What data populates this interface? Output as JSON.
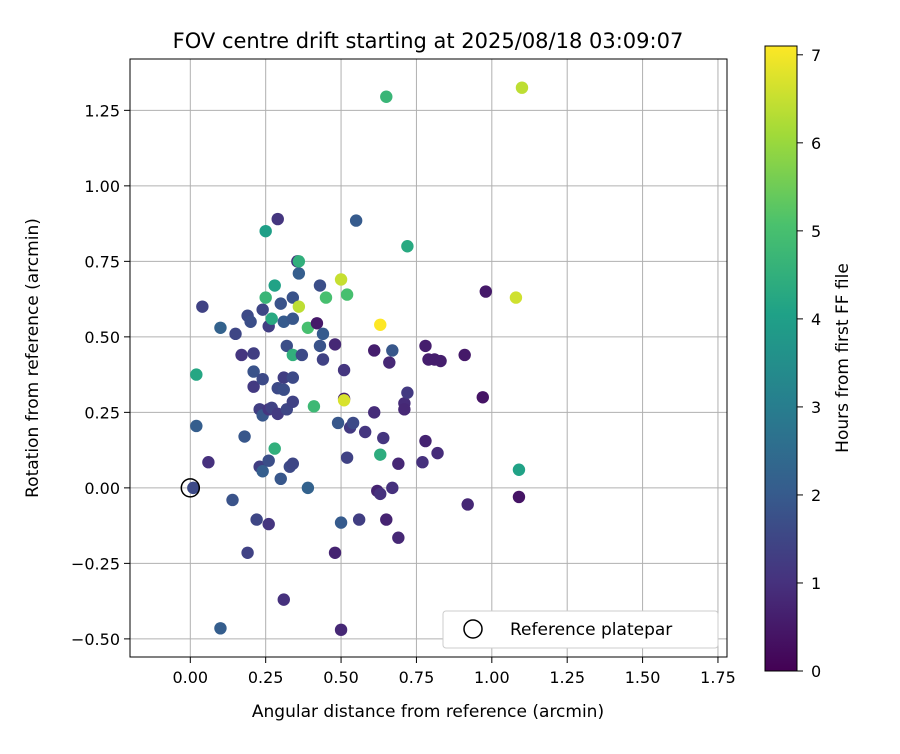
{
  "chart_data": {
    "type": "scatter",
    "title": "FOV centre drift starting at 2025/08/18 03:09:07",
    "xlabel": "Angular distance from reference (arcmin)",
    "ylabel": "Rotation from reference (arcmin)",
    "xlim": [
      -0.2,
      1.78
    ],
    "ylim": [
      -0.56,
      1.42
    ],
    "xticks": [
      "0.00",
      "0.25",
      "0.50",
      "0.75",
      "1.00",
      "1.25",
      "1.50",
      "1.75"
    ],
    "yticks": [
      "-0.50",
      "-0.25",
      "0.00",
      "0.25",
      "0.50",
      "0.75",
      "1.00",
      "1.25"
    ],
    "grid": true,
    "colormap": "viridis",
    "colorbar": {
      "label": "Hours from first FF file",
      "min": 0,
      "max": 7.1,
      "ticks": [
        "0",
        "1",
        "2",
        "3",
        "4",
        "5",
        "6",
        "7"
      ]
    },
    "legend": {
      "placement": "lower-right",
      "entries": [
        {
          "label": "Reference platepar",
          "marker": "hollow-circle"
        }
      ]
    },
    "reference": {
      "x": 0.0,
      "y": 0.0
    },
    "points": [
      {
        "x": 0.01,
        "y": 0.0,
        "h": 1.6
      },
      {
        "x": 0.02,
        "y": 0.205,
        "h": 2.1
      },
      {
        "x": 0.02,
        "y": 0.375,
        "h": 4.2
      },
      {
        "x": 0.04,
        "y": 0.6,
        "h": 1.4
      },
      {
        "x": 0.06,
        "y": 0.085,
        "h": 1.0
      },
      {
        "x": 0.1,
        "y": 0.53,
        "h": 2.2
      },
      {
        "x": 0.1,
        "y": -0.465,
        "h": 2.1
      },
      {
        "x": 0.14,
        "y": -0.04,
        "h": 1.8
      },
      {
        "x": 0.15,
        "y": 0.51,
        "h": 1.5
      },
      {
        "x": 0.17,
        "y": 0.44,
        "h": 1.1
      },
      {
        "x": 0.18,
        "y": 0.17,
        "h": 1.9
      },
      {
        "x": 0.19,
        "y": 0.57,
        "h": 1.6
      },
      {
        "x": 0.19,
        "y": -0.215,
        "h": 1.4
      },
      {
        "x": 0.2,
        "y": 0.55,
        "h": 1.7
      },
      {
        "x": 0.21,
        "y": 0.445,
        "h": 1.3
      },
      {
        "x": 0.21,
        "y": 0.385,
        "h": 1.8
      },
      {
        "x": 0.21,
        "y": 0.335,
        "h": 1.2
      },
      {
        "x": 0.22,
        "y": -0.105,
        "h": 1.5
      },
      {
        "x": 0.23,
        "y": 0.26,
        "h": 1.3
      },
      {
        "x": 0.23,
        "y": 0.07,
        "h": 1.3
      },
      {
        "x": 0.24,
        "y": 0.24,
        "h": 1.9
      },
      {
        "x": 0.24,
        "y": 0.055,
        "h": 2.1
      },
      {
        "x": 0.24,
        "y": 0.59,
        "h": 1.5
      },
      {
        "x": 0.24,
        "y": 0.36,
        "h": 1.6
      },
      {
        "x": 0.25,
        "y": 0.85,
        "h": 4.0
      },
      {
        "x": 0.25,
        "y": 0.63,
        "h": 4.7
      },
      {
        "x": 0.26,
        "y": 0.535,
        "h": 1.3
      },
      {
        "x": 0.26,
        "y": 0.26,
        "h": 1.1
      },
      {
        "x": 0.26,
        "y": -0.12,
        "h": 1.1
      },
      {
        "x": 0.26,
        "y": 0.09,
        "h": 1.7
      },
      {
        "x": 0.27,
        "y": 0.56,
        "h": 4.3
      },
      {
        "x": 0.27,
        "y": 0.265,
        "h": 1.4
      },
      {
        "x": 0.28,
        "y": 0.67,
        "h": 4.1
      },
      {
        "x": 0.28,
        "y": 0.13,
        "h": 4.5
      },
      {
        "x": 0.29,
        "y": 0.89,
        "h": 1.1
      },
      {
        "x": 0.29,
        "y": 0.33,
        "h": 1.6
      },
      {
        "x": 0.29,
        "y": 0.245,
        "h": 1.2
      },
      {
        "x": 0.3,
        "y": 0.61,
        "h": 1.8
      },
      {
        "x": 0.3,
        "y": 0.03,
        "h": 1.9
      },
      {
        "x": 0.31,
        "y": 0.55,
        "h": 2.0
      },
      {
        "x": 0.31,
        "y": 0.365,
        "h": 1.3
      },
      {
        "x": 0.31,
        "y": 0.325,
        "h": 1.7
      },
      {
        "x": 0.31,
        "y": -0.37,
        "h": 1.0
      },
      {
        "x": 0.32,
        "y": 0.26,
        "h": 1.5
      },
      {
        "x": 0.32,
        "y": 0.47,
        "h": 1.7
      },
      {
        "x": 0.33,
        "y": 0.07,
        "h": 1.6
      },
      {
        "x": 0.34,
        "y": 0.63,
        "h": 1.8
      },
      {
        "x": 0.34,
        "y": 0.56,
        "h": 1.9
      },
      {
        "x": 0.34,
        "y": 0.44,
        "h": 4.5
      },
      {
        "x": 0.34,
        "y": 0.365,
        "h": 1.6
      },
      {
        "x": 0.34,
        "y": 0.285,
        "h": 1.4
      },
      {
        "x": 0.34,
        "y": 0.08,
        "h": 1.5
      },
      {
        "x": 0.355,
        "y": 0.75,
        "h": 1.0
      },
      {
        "x": 0.36,
        "y": 0.71,
        "h": 2.1
      },
      {
        "x": 0.36,
        "y": 0.6,
        "h": 6.4
      },
      {
        "x": 0.36,
        "y": 0.75,
        "h": 4.5
      },
      {
        "x": 0.37,
        "y": 0.44,
        "h": 1.6
      },
      {
        "x": 0.39,
        "y": 0.53,
        "h": 5.0
      },
      {
        "x": 0.39,
        "y": 0.0,
        "h": 2.2
      },
      {
        "x": 0.41,
        "y": 0.27,
        "h": 4.8
      },
      {
        "x": 0.42,
        "y": 0.545,
        "h": 0.5
      },
      {
        "x": 0.43,
        "y": 0.67,
        "h": 1.7
      },
      {
        "x": 0.43,
        "y": 0.47,
        "h": 1.8
      },
      {
        "x": 0.44,
        "y": 0.51,
        "h": 2.0
      },
      {
        "x": 0.44,
        "y": 0.425,
        "h": 1.4
      },
      {
        "x": 0.45,
        "y": 0.63,
        "h": 5.0
      },
      {
        "x": 0.48,
        "y": 0.475,
        "h": 0.8
      },
      {
        "x": 0.48,
        "y": -0.215,
        "h": 0.7
      },
      {
        "x": 0.49,
        "y": 0.215,
        "h": 1.9
      },
      {
        "x": 0.5,
        "y": 0.69,
        "h": 6.5
      },
      {
        "x": 0.5,
        "y": -0.115,
        "h": 2.0
      },
      {
        "x": 0.5,
        "y": -0.47,
        "h": 0.8
      },
      {
        "x": 0.51,
        "y": 0.39,
        "h": 1.1
      },
      {
        "x": 0.51,
        "y": 0.295,
        "h": 0.6
      },
      {
        "x": 0.51,
        "y": 0.29,
        "h": 6.7
      },
      {
        "x": 0.52,
        "y": 0.64,
        "h": 5.0
      },
      {
        "x": 0.52,
        "y": 0.1,
        "h": 1.4
      },
      {
        "x": 0.53,
        "y": 0.2,
        "h": 1.2
      },
      {
        "x": 0.54,
        "y": 0.215,
        "h": 1.6
      },
      {
        "x": 0.55,
        "y": 0.885,
        "h": 2.0
      },
      {
        "x": 0.56,
        "y": -0.105,
        "h": 1.3
      },
      {
        "x": 0.58,
        "y": 0.185,
        "h": 1.1
      },
      {
        "x": 0.61,
        "y": 0.455,
        "h": 0.6
      },
      {
        "x": 0.61,
        "y": 0.25,
        "h": 0.9
      },
      {
        "x": 0.62,
        "y": -0.01,
        "h": 0.7
      },
      {
        "x": 0.63,
        "y": 0.54,
        "h": 7.1
      },
      {
        "x": 0.63,
        "y": 0.11,
        "h": 4.4
      },
      {
        "x": 0.63,
        "y": -0.02,
        "h": 1.0
      },
      {
        "x": 0.64,
        "y": 0.165,
        "h": 1.1
      },
      {
        "x": 0.65,
        "y": 1.295,
        "h": 4.7
      },
      {
        "x": 0.65,
        "y": -0.105,
        "h": 0.7
      },
      {
        "x": 0.66,
        "y": 0.415,
        "h": 0.8
      },
      {
        "x": 0.67,
        "y": 0.455,
        "h": 1.9
      },
      {
        "x": 0.67,
        "y": 0.0,
        "h": 1.0
      },
      {
        "x": 0.69,
        "y": 0.08,
        "h": 0.8
      },
      {
        "x": 0.69,
        "y": -0.165,
        "h": 0.8
      },
      {
        "x": 0.71,
        "y": 0.28,
        "h": 0.9
      },
      {
        "x": 0.71,
        "y": 0.26,
        "h": 0.8
      },
      {
        "x": 0.72,
        "y": 0.8,
        "h": 4.3
      },
      {
        "x": 0.72,
        "y": 0.315,
        "h": 1.2
      },
      {
        "x": 0.77,
        "y": 0.085,
        "h": 1.0
      },
      {
        "x": 0.78,
        "y": 0.47,
        "h": 0.6
      },
      {
        "x": 0.78,
        "y": 0.155,
        "h": 0.7
      },
      {
        "x": 0.79,
        "y": 0.425,
        "h": 0.6
      },
      {
        "x": 0.81,
        "y": 0.425,
        "h": 0.6
      },
      {
        "x": 0.82,
        "y": 0.115,
        "h": 0.9
      },
      {
        "x": 0.83,
        "y": 0.42,
        "h": 0.6
      },
      {
        "x": 0.91,
        "y": 0.44,
        "h": 0.5
      },
      {
        "x": 0.92,
        "y": -0.055,
        "h": 0.8
      },
      {
        "x": 0.97,
        "y": 0.3,
        "h": 0.4
      },
      {
        "x": 0.98,
        "y": 0.65,
        "h": 0.5
      },
      {
        "x": 1.08,
        "y": 0.63,
        "h": 6.6
      },
      {
        "x": 1.09,
        "y": 0.06,
        "h": 4.1
      },
      {
        "x": 1.09,
        "y": -0.03,
        "h": 0.4
      },
      {
        "x": 1.1,
        "y": 1.325,
        "h": 6.4
      }
    ]
  }
}
